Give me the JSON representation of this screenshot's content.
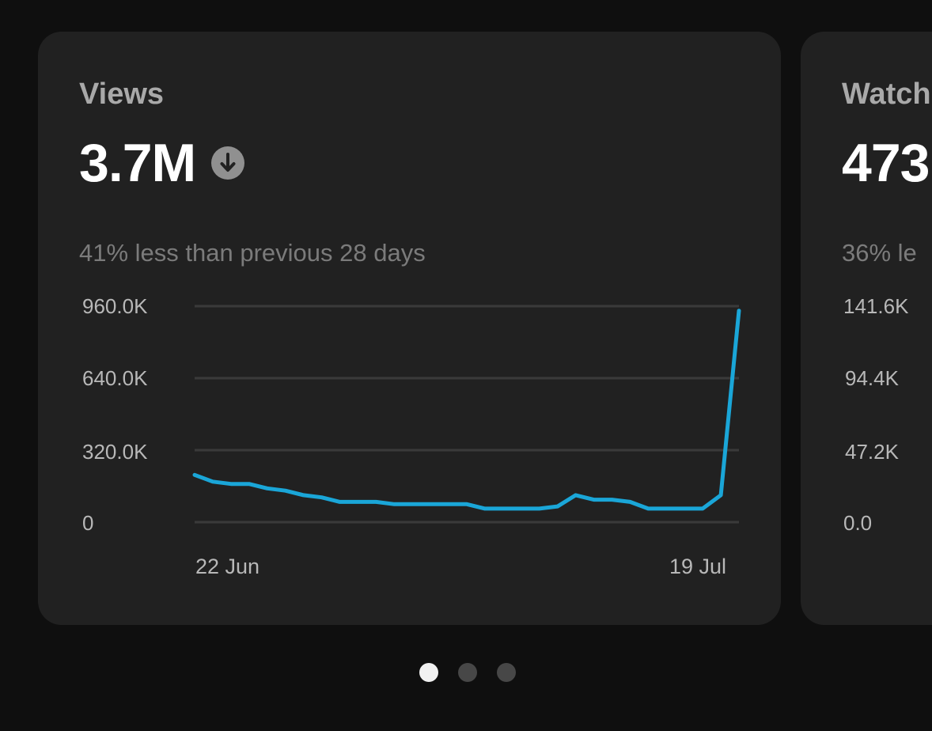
{
  "cards": [
    {
      "title": "Views",
      "value": "3.7M",
      "trend_icon": "arrow-down-circle-icon",
      "comparison": "41% less than previous 28 days",
      "y_ticks": [
        "960.0K",
        "640.0K",
        "320.0K",
        "0"
      ],
      "x_ticks": [
        "22 Jun",
        "19 Jul"
      ]
    },
    {
      "title": "Watch",
      "value": "473",
      "comparison": "36% le",
      "y_ticks": [
        "141.6K",
        "94.4K",
        "47.2K",
        "0.0"
      ]
    }
  ],
  "chart_data": {
    "type": "line",
    "title": "",
    "xlabel": "",
    "ylabel": "",
    "x_ticks": [
      "22 Jun",
      "19 Jul"
    ],
    "y_ticks": [
      "0",
      "320.0K",
      "640.0K",
      "960.0K"
    ],
    "ylim": [
      0,
      960000
    ],
    "grid": true,
    "series": [
      {
        "color": "#1aa6d8",
        "values": [
          210000,
          180000,
          170000,
          170000,
          150000,
          140000,
          120000,
          110000,
          90000,
          90000,
          90000,
          80000,
          80000,
          80000,
          80000,
          80000,
          60000,
          60000,
          60000,
          60000,
          70000,
          120000,
          100000,
          100000,
          90000,
          60000,
          60000,
          60000,
          60000,
          120000,
          940000
        ]
      }
    ]
  },
  "pagination": {
    "count": 3,
    "active_index": 0
  },
  "colors": {
    "background": "#0f0f0f",
    "card": "#212121",
    "line": "#1aa6d8",
    "grid": "#3a3a3a"
  }
}
